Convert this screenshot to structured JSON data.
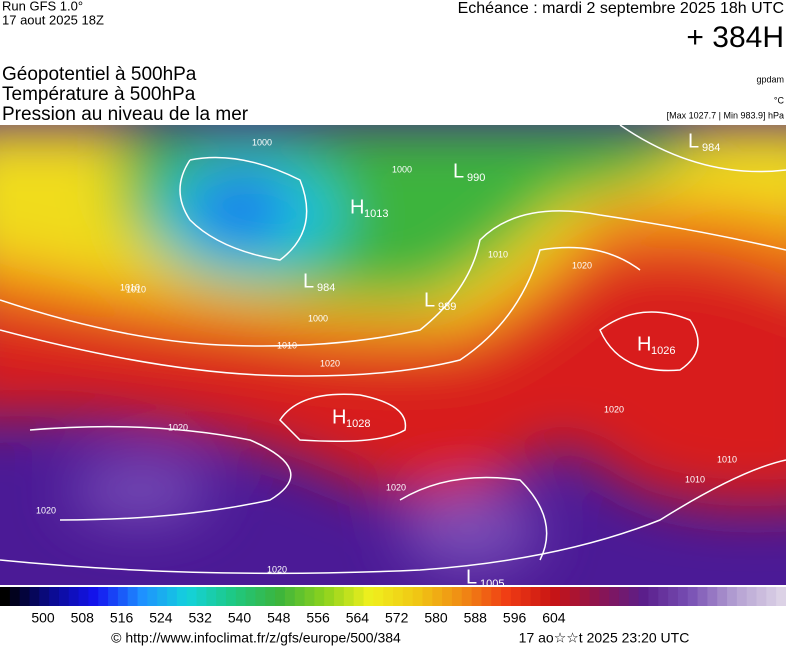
{
  "header": {
    "run": "Run GFS 1.0°",
    "date": "17 aout 2025 18Z",
    "echeance": "Echéance : mardi 2 septembre 2025 18h UTC",
    "lead": "+ 384H",
    "titles": [
      "Géopotentiel à 500hPa",
      "Température à 500hPa",
      "Pression au niveau de la mer"
    ],
    "units": [
      "gpdam",
      "°C",
      "[Max 1027.7 | Min 983.9] hPa"
    ]
  },
  "centers": [
    {
      "type": "H",
      "value": "1013"
    },
    {
      "type": "L",
      "value": "990"
    },
    {
      "type": "L",
      "value": "984"
    },
    {
      "type": "L",
      "value": "984"
    },
    {
      "type": "L",
      "value": "989"
    },
    {
      "type": "H",
      "value": "1026"
    },
    {
      "type": "H",
      "value": "1028"
    },
    {
      "type": "L",
      "value": "1005"
    }
  ],
  "isobar_labels": [
    "1000",
    "1010",
    "1020",
    "1020",
    "1010",
    "1000",
    "1010",
    "1020",
    "1020",
    "1020",
    "1010",
    "1010",
    "1020",
    "1010",
    "1020",
    "1000"
  ],
  "colorbar": {
    "labels": [
      "500",
      "508",
      "516",
      "524",
      "532",
      "540",
      "548",
      "556",
      "564",
      "572",
      "580",
      "588",
      "596",
      "604"
    ],
    "colors": [
      "#000000",
      "#0a0a8c",
      "#1414f0",
      "#1e90ff",
      "#14d2dc",
      "#1ec882",
      "#3cb43c",
      "#8cd21e",
      "#f0f01e",
      "#f0c814",
      "#f08c14",
      "#f03c14",
      "#c81414",
      "#8c1450",
      "#5a1e8c",
      "#7850b4",
      "#b4a0d2",
      "#dcd2e6"
    ]
  },
  "footer": {
    "source": "© http://www.infoclimat.fr/z/gfs/europe/500/384",
    "updated": "17 ao☆☆t 2025 23:20 UTC"
  }
}
